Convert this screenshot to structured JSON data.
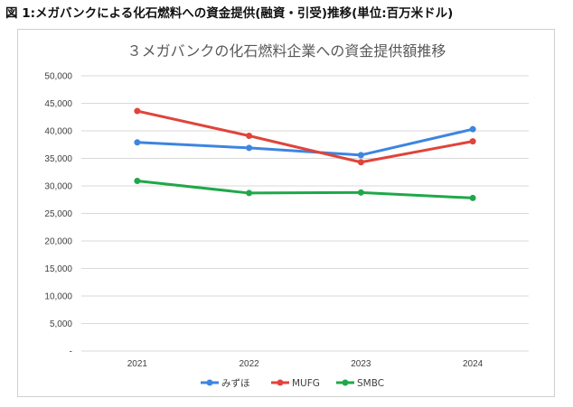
{
  "figure": {
    "caption": "図 1:メガバンクによる化石燃料への資金提供(融資・引受)推移(単位:百万米ドル)"
  },
  "chart_data": {
    "type": "line",
    "title": "３メガバンクの化石燃料企業への資金提供額推移",
    "categories": [
      "2021",
      "2022",
      "2023",
      "2024"
    ],
    "ylim": [
      0,
      50000
    ],
    "yticks": [
      0,
      5000,
      10000,
      15000,
      20000,
      25000,
      30000,
      35000,
      40000,
      45000,
      50000
    ],
    "ytick_labels": [
      "-",
      "5,000",
      "10,000",
      "15,000",
      "20,000",
      "25,000",
      "30,000",
      "35,000",
      "40,000",
      "45,000",
      "50,000"
    ],
    "grid": true,
    "legend_position": "bottom",
    "series": [
      {
        "name": "みずほ",
        "color": "#3d85e0",
        "values": [
          37900,
          36900,
          35600,
          40300
        ]
      },
      {
        "name": "MUFG",
        "color": "#e0443a",
        "values": [
          43600,
          39100,
          34300,
          38100
        ]
      },
      {
        "name": "SMBC",
        "color": "#1fa84a",
        "values": [
          30900,
          28700,
          28800,
          27800
        ]
      }
    ]
  }
}
